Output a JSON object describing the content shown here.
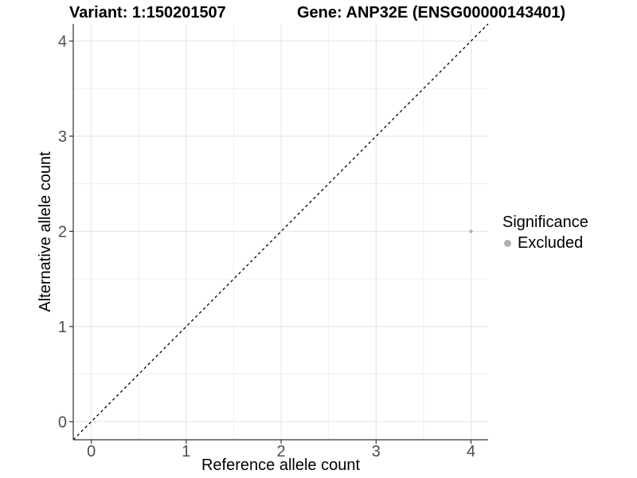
{
  "header": {
    "variant_title": "Variant: 1:150201507",
    "gene_title": "Gene: ANP32E (ENSG00000143401)"
  },
  "chart_data": {
    "type": "scatter",
    "xlabel": "Reference allele count",
    "ylabel": "Alternative allele count",
    "xlim": [
      -0.19,
      4.18
    ],
    "ylim": [
      -0.19,
      4.18
    ],
    "x_ticks": [
      0,
      1,
      2,
      3,
      4
    ],
    "y_ticks": [
      0,
      1,
      2,
      3,
      4
    ],
    "x_minor_ticks": [
      0.5,
      1.5,
      2.5,
      3.5
    ],
    "y_minor_ticks": [
      0.5,
      1.5,
      2.5,
      3.5
    ],
    "grid": "on",
    "points": [
      {
        "x": 4,
        "y": 2,
        "series": "Excluded"
      }
    ],
    "identity_line": {
      "slope": 1,
      "intercept": 0,
      "style": "dashed",
      "color": "#000000"
    },
    "series": [
      {
        "name": "Excluded",
        "color": "#b0b0b0"
      }
    ],
    "legend": {
      "position": "right",
      "title": "Significance",
      "items": [
        {
          "label": "Excluded",
          "color": "#b0b0b0"
        }
      ]
    },
    "style": {
      "grid_major_color": "#e3e3e3",
      "grid_minor_color": "#efefef",
      "axis_color": "#333333",
      "tick_text_color": "#4d4d4d",
      "axis_title_color": "#000000",
      "point_radius": 2.2
    }
  }
}
